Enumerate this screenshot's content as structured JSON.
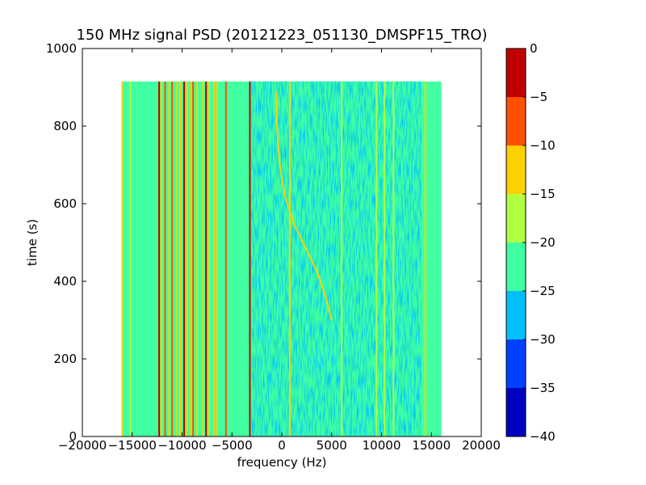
{
  "chart_data": {
    "type": "heatmap",
    "title": "150 MHz signal PSD (20121223_051130_DMSPF15_TRO)",
    "xlabel": "frequency (Hz)",
    "ylabel": "time (s)",
    "xlim": [
      -20000,
      20000
    ],
    "ylim": [
      0,
      1000
    ],
    "x_ticks": [
      -20000,
      -15000,
      -10000,
      -5000,
      0,
      5000,
      10000,
      15000,
      20000
    ],
    "x_tick_labels": [
      "−20000",
      "−15000",
      "−10000",
      "−5000",
      "0",
      "5000",
      "10000",
      "15000",
      "20000"
    ],
    "y_ticks": [
      0,
      200,
      400,
      600,
      800,
      1000
    ],
    "y_tick_labels": [
      "0",
      "200",
      "400",
      "600",
      "800",
      "1000"
    ],
    "data_extent": {
      "x_min": -16000,
      "x_max": 16000,
      "y_min": 0,
      "y_max": 915
    },
    "background_level": -22.5,
    "colorbar": {
      "levels": [
        -40,
        -35,
        -30,
        -25,
        -20,
        -15,
        -10,
        -5,
        0
      ],
      "tick_labels": [
        "−40",
        "−35",
        "−30",
        "−25",
        "−20",
        "−15",
        "−10",
        "−5",
        "0"
      ],
      "colors": [
        "#0000c0",
        "#0040ff",
        "#00c0ff",
        "#40ffa0",
        "#b0ff40",
        "#ffd000",
        "#ff5000",
        "#c00000"
      ]
    },
    "vertical_lines": [
      {
        "freq": -16000,
        "level": -15
      },
      {
        "freq": -15200,
        "level": -17
      },
      {
        "freq": -12300,
        "level": -2
      },
      {
        "freq": -12100,
        "level": -12
      },
      {
        "freq": -11700,
        "level": -8
      },
      {
        "freq": -11300,
        "level": -12
      },
      {
        "freq": -11000,
        "level": -8
      },
      {
        "freq": -10500,
        "level": -12
      },
      {
        "freq": -10200,
        "level": -12
      },
      {
        "freq": -9800,
        "level": -1
      },
      {
        "freq": -9500,
        "level": -12
      },
      {
        "freq": -9100,
        "level": -12
      },
      {
        "freq": -8900,
        "level": -8
      },
      {
        "freq": -8500,
        "level": -12
      },
      {
        "freq": -7900,
        "level": -12
      },
      {
        "freq": -7600,
        "level": -5
      },
      {
        "freq": -7300,
        "level": -12
      },
      {
        "freq": -6800,
        "level": -12
      },
      {
        "freq": -6500,
        "level": -12
      },
      {
        "freq": -5600,
        "level": -8
      },
      {
        "freq": -3200,
        "level": -4
      },
      {
        "freq": 800,
        "level": -12
      },
      {
        "freq": 6000,
        "level": -17
      },
      {
        "freq": 9500,
        "level": -17
      },
      {
        "freq": 10300,
        "level": -17
      },
      {
        "freq": 11200,
        "level": -17
      },
      {
        "freq": 14400,
        "level": -12
      }
    ],
    "drifting_trace": {
      "level": -12,
      "points": [
        {
          "freq": -600,
          "time": 890
        },
        {
          "freq": -500,
          "time": 800
        },
        {
          "freq": -200,
          "time": 700
        },
        {
          "freq": 300,
          "time": 620
        },
        {
          "freq": 1200,
          "time": 550
        },
        {
          "freq": 2500,
          "time": 480
        },
        {
          "freq": 3600,
          "time": 420
        },
        {
          "freq": 4400,
          "time": 360
        },
        {
          "freq": 5000,
          "time": 300
        }
      ]
    },
    "noise_region": {
      "freq_start": -3000,
      "freq_end": 14000
    },
    "grid": false,
    "legend": "none"
  }
}
